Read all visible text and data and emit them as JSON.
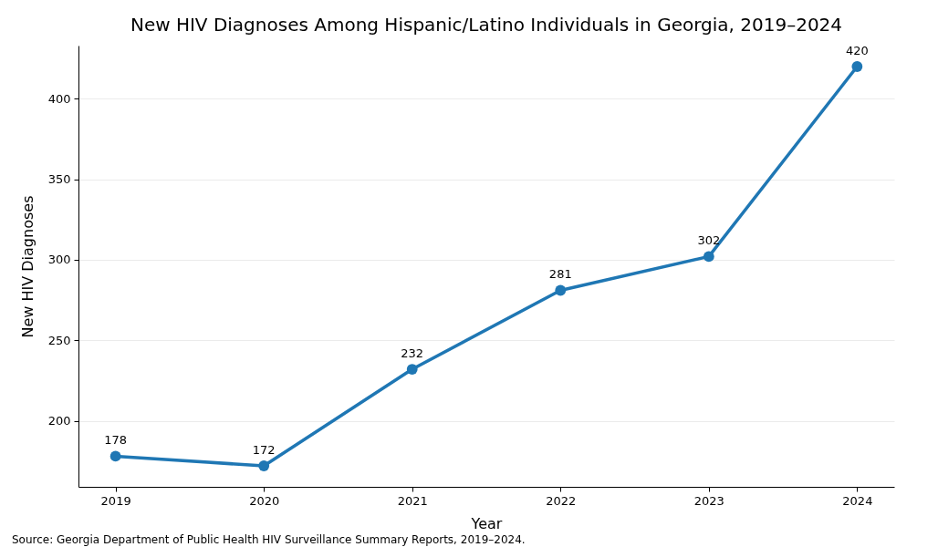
{
  "chart_data": {
    "type": "line",
    "title": "New HIV Diagnoses Among Hispanic/Latino Individuals in Georgia, 2019–2024",
    "xlabel": "Year",
    "ylabel": "New HIV Diagnoses",
    "x": [
      2019,
      2020,
      2021,
      2022,
      2023,
      2024
    ],
    "series": [
      {
        "color": "#1f77b4",
        "values": [
          178,
          172,
          232,
          281,
          302,
          420
        ]
      }
    ],
    "xlim": [
      2018.75,
      2024.25
    ],
    "xticks": [
      2019,
      2020,
      2021,
      2022,
      2023,
      2024
    ],
    "ylim": [
      159,
      433
    ],
    "yticks": [
      200,
      250,
      300,
      350,
      400
    ],
    "grid": "y",
    "marker": "circle",
    "line_style": "solid",
    "data_labels": true,
    "annotations": [
      "Source: Georgia Department of Public Health HIV Surveillance Summary Reports, 2019–2024."
    ]
  }
}
